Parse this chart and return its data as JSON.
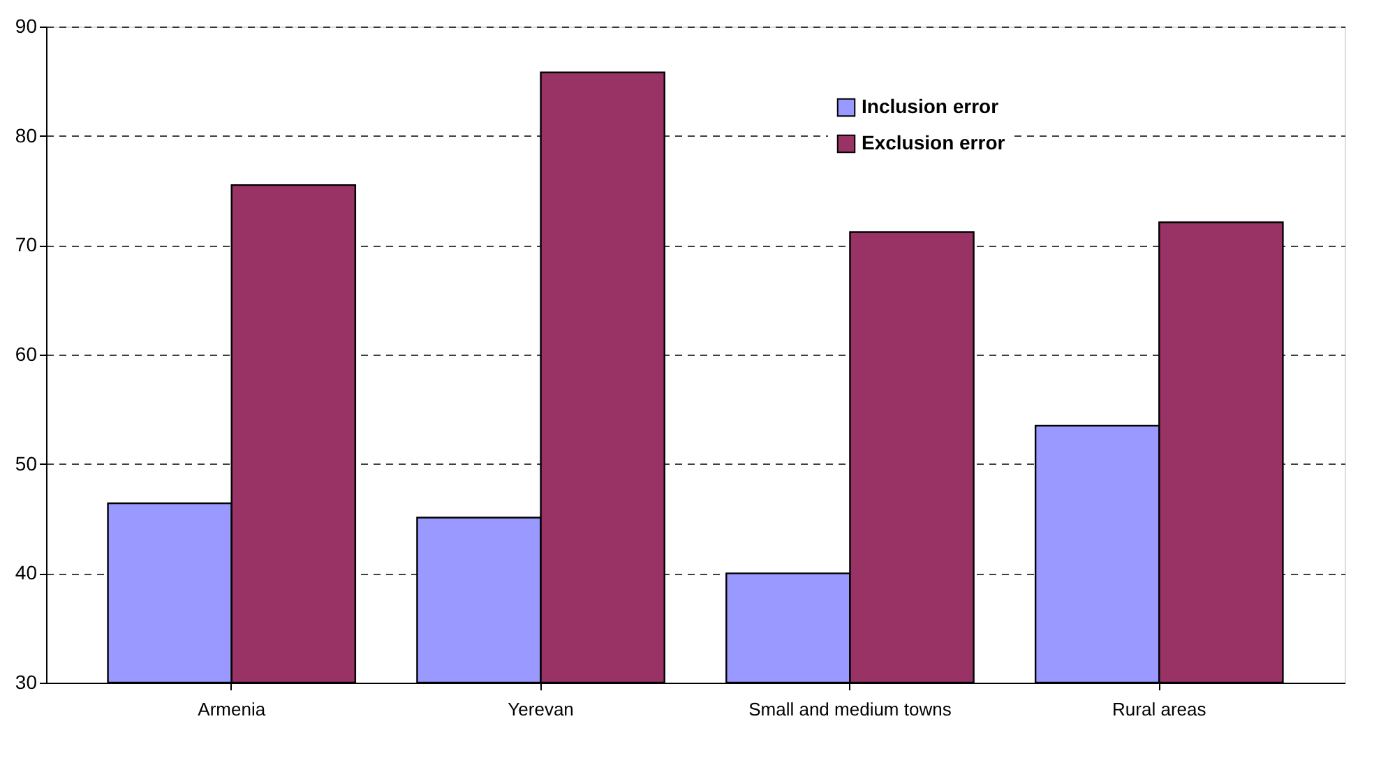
{
  "chart_data": {
    "type": "bar",
    "categories": [
      "Armenia",
      "Yerevan",
      "Small and medium towns",
      "Rural areas"
    ],
    "series": [
      {
        "name": "Inclusion error",
        "color": "#9999ff",
        "values": [
          46.4,
          45.1,
          40.0,
          53.5
        ]
      },
      {
        "name": "Exclusion error",
        "color": "#993366",
        "values": [
          75.5,
          85.8,
          71.2,
          72.1
        ]
      }
    ],
    "ylim": [
      30,
      90
    ],
    "yticks": [
      30,
      40,
      50,
      60,
      70,
      80,
      90
    ],
    "grid": "y",
    "legend": "top right"
  }
}
